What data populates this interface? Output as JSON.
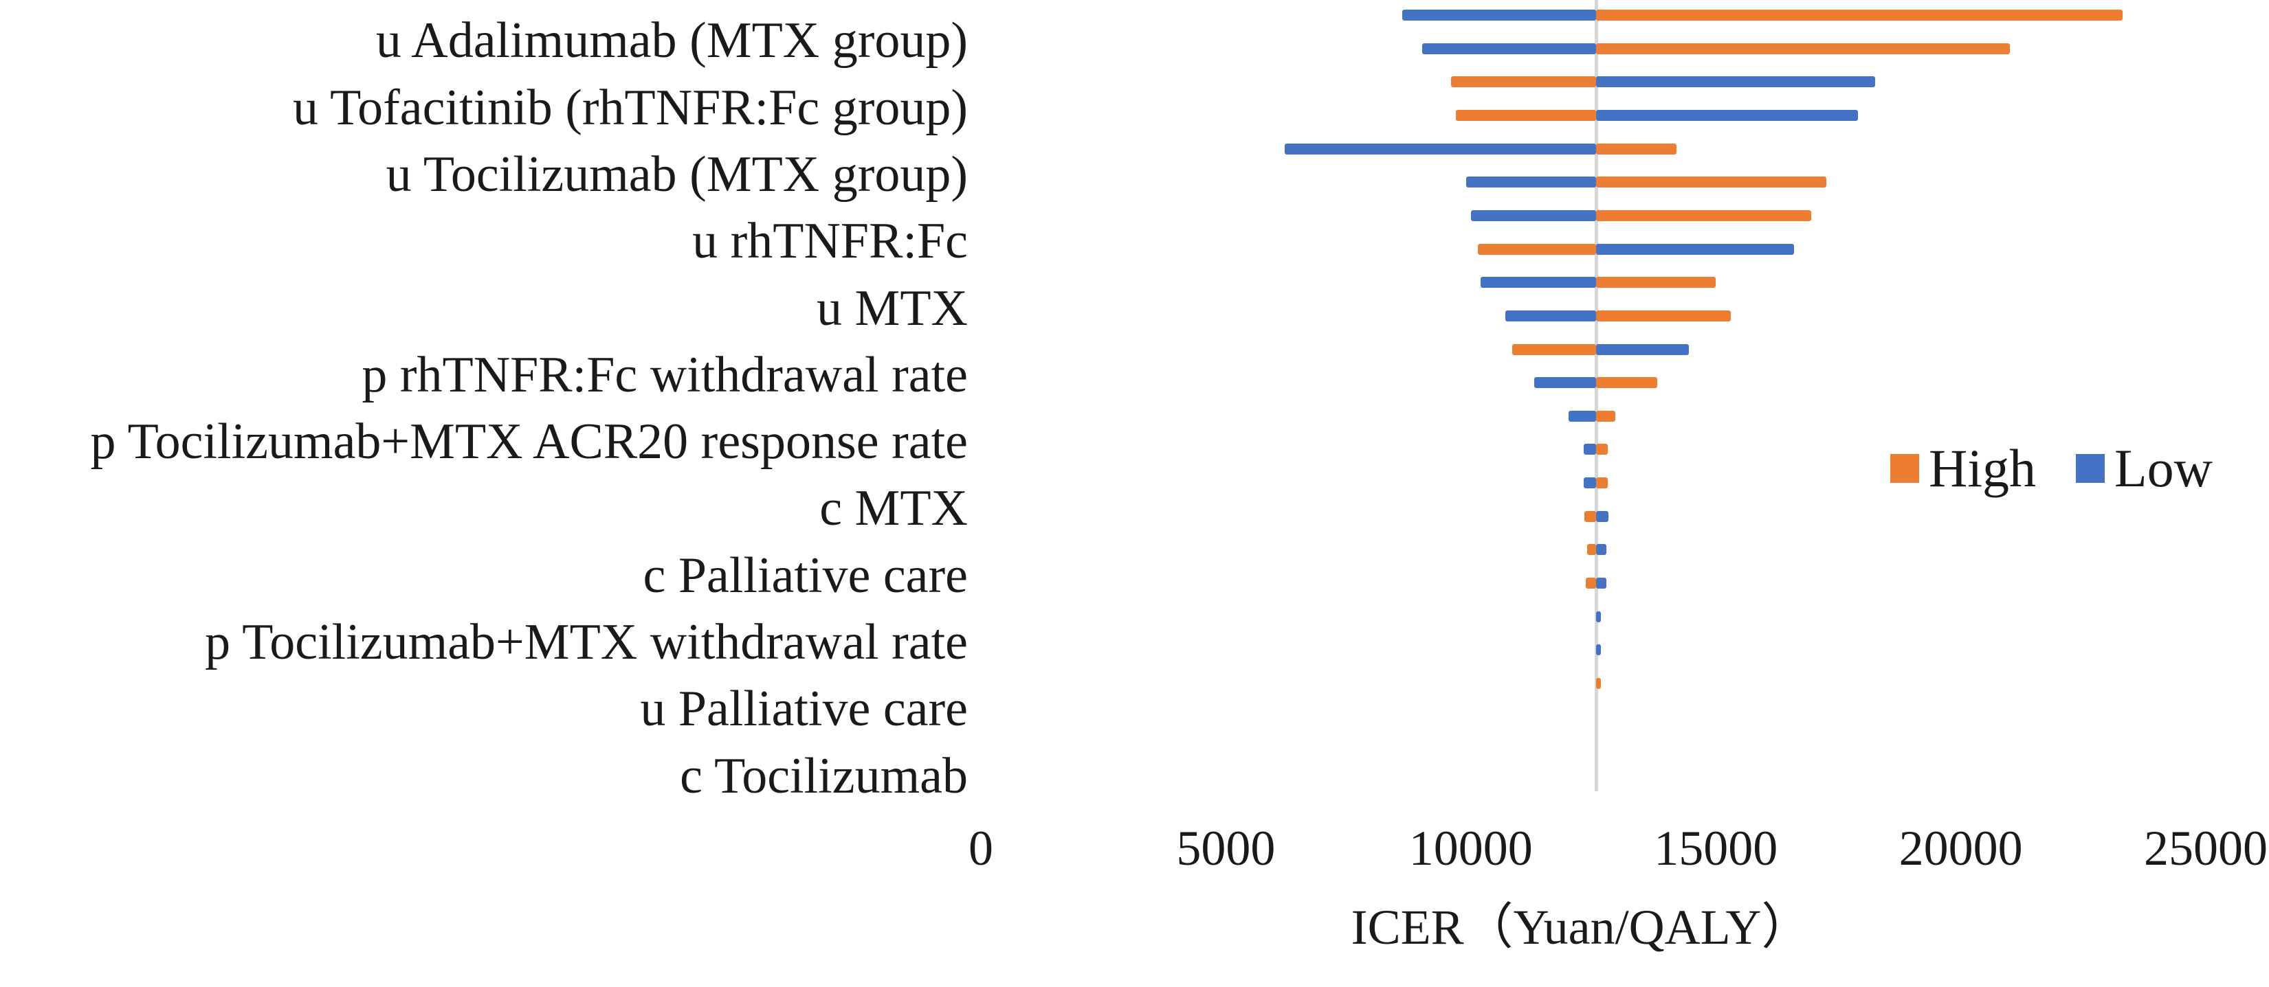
{
  "chart_data": {
    "type": "bar",
    "variant": "tornado",
    "title": "",
    "xlabel": "ICER（Yuan/QALY）",
    "x_ticks": [
      0,
      5000,
      10000,
      15000,
      20000,
      25000
    ],
    "xlim": [
      0,
      25000
    ],
    "baseline_icer": 12560,
    "grid": false,
    "legend_position": "right-middle",
    "legend": [
      {
        "name": "High",
        "color": "#ED7D31"
      },
      {
        "name": "Low",
        "color": "#4472C4"
      }
    ],
    "axis_line_color": "#D6D6D6",
    "categories": [
      {
        "label": "u Adalimumab (MTX group)",
        "rows": [
          {
            "high": 23300,
            "low": 8600
          },
          {
            "high": 21000,
            "low": 9000
          }
        ]
      },
      {
        "label": "u Tofacitinib (rhTNFR:Fc group)",
        "rows": [
          {
            "high": 9600,
            "low": 18250
          },
          {
            "high": 9700,
            "low": 17900
          }
        ]
      },
      {
        "label": "u Tocilizumab (MTX group)",
        "rows": [
          {
            "high": 14200,
            "low": 6200
          },
          {
            "high": 17250,
            "low": 9900
          }
        ]
      },
      {
        "label": "u rhTNFR:Fc",
        "rows": [
          {
            "high": 16950,
            "low": 10000
          },
          {
            "high": 10150,
            "low": 16600
          }
        ]
      },
      {
        "label": "u MTX",
        "rows": [
          {
            "high": 15000,
            "low": 10200
          },
          {
            "high": 15300,
            "low": 10700
          }
        ]
      },
      {
        "label": "p rhTNFR:Fc withdrawal rate",
        "rows": [
          {
            "high": 10850,
            "low": 14450
          },
          {
            "high": 13800,
            "low": 11300
          }
        ]
      },
      {
        "label": "p Tocilizumab+MTX ACR20 response rate",
        "rows": [
          {
            "high": 12950,
            "low": 12000
          },
          {
            "high": 12800,
            "low": 12300
          }
        ]
      },
      {
        "label": "c MTX",
        "rows": [
          {
            "high": 12800,
            "low": 12300
          },
          {
            "high": 12320,
            "low": 12810
          }
        ]
      },
      {
        "label": "c Palliative care",
        "rows": [
          {
            "high": 12375,
            "low": 12770
          },
          {
            "high": 12350,
            "low": 12770
          }
        ]
      },
      {
        "label": "p Tocilizumab+MTX withdrawal rate",
        "rows": [
          {
            "high": null,
            "low": 12650
          },
          {
            "high": null,
            "low": 12650
          }
        ]
      },
      {
        "label": "u Palliative care",
        "rows": [
          {
            "high": 12650,
            "low": null
          },
          {
            "high": null,
            "low": null
          }
        ]
      },
      {
        "label": "c Tocilizumab",
        "rows": [
          {
            "high": null,
            "low": null
          },
          {
            "high": null,
            "low": null
          }
        ]
      }
    ]
  }
}
